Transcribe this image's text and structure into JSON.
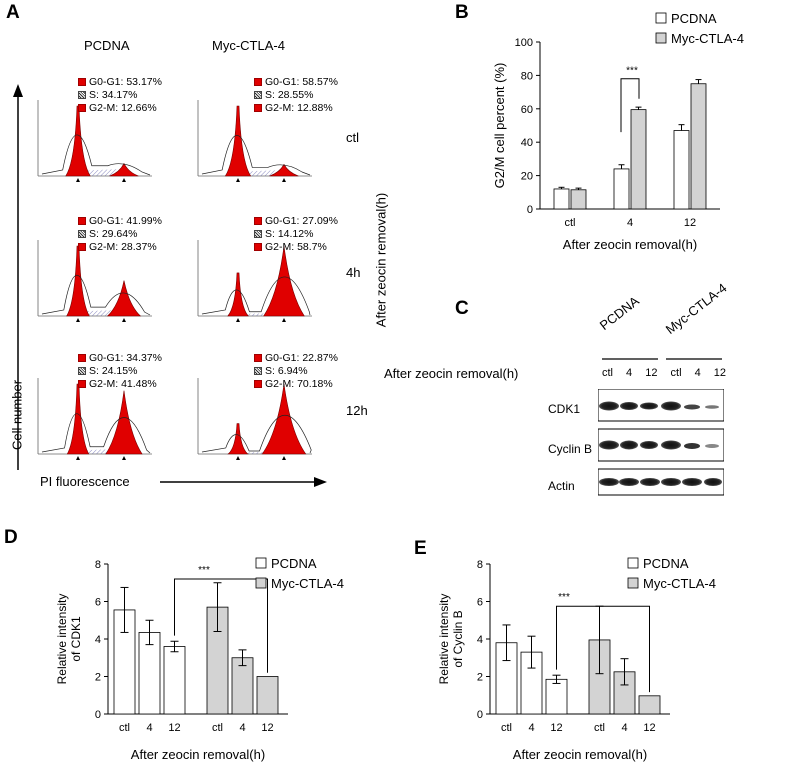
{
  "panel_letters": {
    "a": "A",
    "b": "B",
    "c": "C",
    "d": "D",
    "e": "E"
  },
  "panel_a": {
    "col_titles": [
      "PCDNA",
      "Myc-CTLA-4"
    ],
    "row_labels": [
      "ctl",
      "4h",
      "12h"
    ],
    "y_axis_label": "Cell  number",
    "x_axis_label": "PI fluorescence",
    "side_label": "After zeocin removal(h)",
    "stats": [
      [
        "G0-G1: 53.17%",
        "S: 34.17%",
        "G2-M: 12.66%"
      ],
      [
        "G0-G1: 58.57%",
        "S: 28.55%",
        "G2-M: 12.88%"
      ],
      [
        "G0-G1: 41.99%",
        "S: 29.64%",
        "G2-M: 28.37%"
      ],
      [
        "G0-G1: 27.09%",
        "S: 14.12%",
        "G2-M: 58.7%"
      ],
      [
        "G0-G1: 34.37%",
        "S: 24.15%",
        "G2-M: 41.48%"
      ],
      [
        "G0-G1: 22.87%",
        "S: 6.94%",
        "G2-M: 70.18%"
      ]
    ]
  },
  "panel_c": {
    "header_label": "After zeocin removal(h)",
    "group_labels": [
      "PCDNA",
      "Myc-CTLA-4"
    ],
    "lane_labels": [
      "ctl",
      "4",
      "12",
      "ctl",
      "4",
      "12"
    ],
    "proteins": [
      "CDK1",
      "Cyclin B",
      "Actin"
    ]
  },
  "chart_data": [
    {
      "id": "B",
      "type": "bar",
      "categories": [
        "ctl",
        "4",
        "12"
      ],
      "series": [
        {
          "name": "PCDNA",
          "values": [
            12,
            24,
            47
          ],
          "errors": [
            1,
            2.5,
            3.5
          ],
          "color": "#ffffff"
        },
        {
          "name": "Myc-CTLA-4",
          "values": [
            11.5,
            59.5,
            75
          ],
          "errors": [
            1,
            1.5,
            2.5
          ],
          "color": "#d3d3d3"
        }
      ],
      "yticks": [
        0,
        20,
        40,
        60,
        80,
        100
      ],
      "ylim": [
        0,
        100
      ],
      "ylabel": "G2/M cell percent (%)",
      "xlabel": "After zeocin removal(h)",
      "significance": "***",
      "legend": [
        "PCDNA",
        "Myc-CTLA-4"
      ]
    },
    {
      "id": "D",
      "type": "bar",
      "categories": [
        "ctl",
        "4",
        "12",
        "ctl",
        "4",
        "12"
      ],
      "groups": [
        "PCDNA",
        "PCDNA",
        "PCDNA",
        "Myc-CTLA-4",
        "Myc-CTLA-4",
        "Myc-CTLA-4"
      ],
      "values": [
        5.55,
        4.35,
        3.6,
        5.7,
        3.0,
        2.0
      ],
      "errors": [
        1.2,
        0.65,
        0.28,
        1.3,
        0.42,
        0.0
      ],
      "colors": [
        "#ffffff",
        "#ffffff",
        "#ffffff",
        "#d3d3d3",
        "#d3d3d3",
        "#d3d3d3"
      ],
      "yticks": [
        0,
        2,
        4,
        6,
        8
      ],
      "ylim": [
        0,
        8
      ],
      "ylabel_lines": [
        "Relative intensity",
        "of CDK1"
      ],
      "xlabel": "After zeocin removal(h)",
      "significance": "***",
      "legend": [
        "PCDNA",
        "Myc-CTLA-4"
      ]
    },
    {
      "id": "E",
      "type": "bar",
      "categories": [
        "ctl",
        "4",
        "12",
        "ctl",
        "4",
        "12"
      ],
      "groups": [
        "PCDNA",
        "PCDNA",
        "PCDNA",
        "Myc-CTLA-4",
        "Myc-CTLA-4",
        "Myc-CTLA-4"
      ],
      "values": [
        3.8,
        3.3,
        1.85,
        3.95,
        2.25,
        0.97
      ],
      "errors": [
        0.95,
        0.85,
        0.22,
        1.8,
        0.7,
        0.0
      ],
      "colors": [
        "#ffffff",
        "#ffffff",
        "#ffffff",
        "#d3d3d3",
        "#d3d3d3",
        "#d3d3d3"
      ],
      "yticks": [
        0,
        2,
        4,
        6,
        8
      ],
      "ylim": [
        0,
        8
      ],
      "ylabel_lines": [
        "Relative intensity",
        "of Cyclin B"
      ],
      "xlabel": "After zeocin removal(h)",
      "significance": "***",
      "legend": [
        "PCDNA",
        "Myc-CTLA-4"
      ]
    }
  ]
}
